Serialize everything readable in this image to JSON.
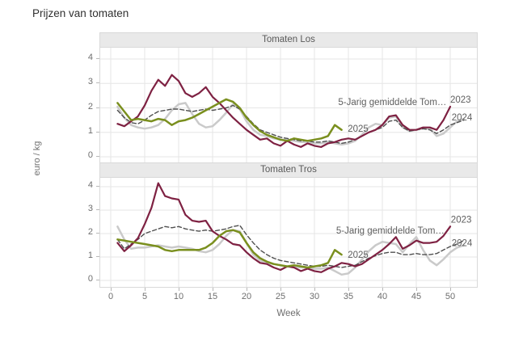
{
  "title": "Prijzen van tomaten",
  "colors": {
    "series_2023": "#7E2142",
    "series_2024": "#CACACA",
    "series_2025": "#7A8F1E",
    "series_avg": "#4F4F4F",
    "grid": "#E6E6E6",
    "panel_border": "#D9D9D9",
    "strip_bg": "#E9E9E9",
    "label_text": "#5E5E5E",
    "tick_text": "#6E6E6E"
  },
  "chart_data": {
    "type": "line",
    "title": "Prijzen van tomaten",
    "xlabel": "Week",
    "ylabel": "euro / kg",
    "x_ticks": [
      0,
      5,
      10,
      15,
      20,
      25,
      30,
      35,
      40,
      45,
      50
    ],
    "y_ticks": [
      0,
      1,
      2,
      3,
      4
    ],
    "xlim": [
      -1.5,
      54
    ],
    "ylim": [
      -0.25,
      4.45
    ],
    "grid": true,
    "legend_position": "direct-labels-on-lines",
    "panels": [
      {
        "title": "Tomaten Los",
        "series": [
          {
            "name": "2024",
            "color_key": "series_2024",
            "style": "solid",
            "width": 2.5,
            "start_week": 1,
            "values": [
              2.05,
              1.6,
              1.3,
              1.2,
              1.15,
              1.2,
              1.3,
              1.55,
              1.9,
              2.15,
              2.2,
              1.75,
              1.35,
              1.2,
              1.25,
              1.5,
              1.8,
              2.15,
              1.95,
              1.45,
              1.1,
              0.9,
              0.85,
              0.75,
              0.7,
              0.7,
              0.65,
              0.6,
              0.6,
              0.55,
              0.55,
              0.6,
              0.55,
              0.5,
              0.55,
              0.65,
              0.9,
              1.2,
              1.35,
              1.3,
              1.6,
              1.65,
              1.2,
              1.05,
              1.1,
              1.15,
              1.15,
              0.85,
              0.95,
              1.2,
              1.45,
              1.55
            ]
          },
          {
            "name": "5-Jarig gemiddelde",
            "color_key": "series_avg",
            "style": "dashed",
            "width": 1.4,
            "start_week": 1,
            "values": [
              1.9,
              1.6,
              1.4,
              1.35,
              1.5,
              1.7,
              1.85,
              1.9,
              1.95,
              1.95,
              1.9,
              1.85,
              1.9,
              1.95,
              1.9,
              1.95,
              2.0,
              2.1,
              1.95,
              1.65,
              1.35,
              1.1,
              1.0,
              0.9,
              0.8,
              0.75,
              0.7,
              0.65,
              0.65,
              0.6,
              0.6,
              0.65,
              0.6,
              0.55,
              0.6,
              0.7,
              0.85,
              1.0,
              1.1,
              1.2,
              1.45,
              1.5,
              1.2,
              1.05,
              1.1,
              1.15,
              1.1,
              0.95,
              1.1,
              1.3,
              1.4,
              1.5
            ]
          },
          {
            "name": "2023",
            "color_key": "series_2023",
            "style": "solid",
            "width": 2.2,
            "start_week": 1,
            "values": [
              1.35,
              1.25,
              1.45,
              1.65,
              2.1,
              2.7,
              3.15,
              2.9,
              3.35,
              3.1,
              2.6,
              2.45,
              2.6,
              2.85,
              2.45,
              2.2,
              1.9,
              1.6,
              1.35,
              1.1,
              0.9,
              0.7,
              0.75,
              0.55,
              0.45,
              0.65,
              0.5,
              0.4,
              0.55,
              0.45,
              0.4,
              0.55,
              0.6,
              0.7,
              0.75,
              0.7,
              0.85,
              1.0,
              1.1,
              1.3,
              1.65,
              1.7,
              1.3,
              1.1,
              1.1,
              1.2,
              1.2,
              1.1,
              1.5,
              2.05
            ]
          },
          {
            "name": "2025",
            "color_key": "series_2025",
            "style": "solid",
            "width": 2.5,
            "start_week": 1,
            "values": [
              2.2,
              1.85,
              1.5,
              1.55,
              1.5,
              1.45,
              1.55,
              1.5,
              1.3,
              1.45,
              1.5,
              1.6,
              1.75,
              1.9,
              2.05,
              2.2,
              2.35,
              2.25,
              2.0,
              1.6,
              1.3,
              1.05,
              0.9,
              0.8,
              0.7,
              0.65,
              0.75,
              0.7,
              0.65,
              0.7,
              0.75,
              0.85,
              1.3,
              1.1
            ]
          }
        ],
        "labels": [
          {
            "text": "5-Jarig gemiddelde Tom…",
            "week": 33.5,
            "value": 2.25,
            "anchor": "start"
          },
          {
            "text": "2023",
            "week": 50.0,
            "value": 2.35,
            "anchor": "start"
          },
          {
            "text": "2024",
            "week": 50.2,
            "value": 1.62,
            "anchor": "start"
          },
          {
            "text": "2025",
            "week": 34.9,
            "value": 1.16,
            "anchor": "start"
          }
        ]
      },
      {
        "title": "Tomaten Tros",
        "series": [
          {
            "name": "2024",
            "color_key": "series_2024",
            "style": "solid",
            "width": 2.5,
            "start_week": 1,
            "values": [
              2.3,
              1.75,
              1.35,
              1.4,
              1.4,
              1.45,
              1.5,
              1.45,
              1.4,
              1.45,
              1.4,
              1.35,
              1.25,
              1.2,
              1.3,
              1.55,
              1.9,
              2.15,
              2.1,
              1.6,
              1.1,
              0.85,
              0.75,
              0.7,
              0.65,
              0.6,
              0.6,
              0.55,
              0.55,
              0.5,
              0.5,
              0.55,
              0.4,
              0.25,
              0.3,
              0.55,
              0.9,
              1.25,
              1.5,
              1.65,
              1.6,
              1.55,
              1.2,
              1.55,
              1.85,
              1.3,
              0.85,
              0.65,
              0.9,
              1.2,
              1.4,
              1.5
            ]
          },
          {
            "name": "5-Jarig gemiddelde",
            "color_key": "series_avg",
            "style": "dashed",
            "width": 1.4,
            "start_week": 1,
            "values": [
              1.75,
              1.35,
              1.55,
              1.75,
              2.0,
              2.1,
              2.2,
              2.3,
              2.25,
              2.3,
              2.2,
              2.15,
              2.1,
              2.15,
              2.1,
              2.15,
              2.2,
              2.3,
              2.35,
              1.95,
              1.6,
              1.3,
              1.1,
              0.95,
              0.85,
              0.8,
              0.75,
              0.7,
              0.65,
              0.6,
              0.6,
              0.65,
              0.6,
              0.55,
              0.6,
              0.65,
              0.8,
              0.95,
              1.05,
              1.15,
              1.2,
              1.2,
              1.1,
              1.1,
              1.15,
              1.1,
              1.1,
              1.15,
              1.3,
              1.45,
              1.55,
              1.7
            ]
          },
          {
            "name": "2023",
            "color_key": "series_2023",
            "style": "solid",
            "width": 2.2,
            "start_week": 1,
            "values": [
              1.6,
              1.25,
              1.5,
              1.8,
              2.4,
              3.1,
              4.15,
              3.6,
              3.5,
              3.45,
              2.8,
              2.55,
              2.5,
              2.55,
              2.1,
              1.9,
              1.75,
              1.55,
              1.5,
              1.2,
              0.95,
              0.75,
              0.7,
              0.55,
              0.45,
              0.6,
              0.55,
              0.4,
              0.5,
              0.4,
              0.35,
              0.5,
              0.6,
              0.75,
              0.7,
              0.6,
              0.7,
              0.9,
              1.1,
              1.3,
              1.55,
              1.85,
              1.35,
              1.5,
              1.7,
              1.6,
              1.6,
              1.65,
              1.9,
              2.3
            ]
          },
          {
            "name": "2025",
            "color_key": "series_2025",
            "style": "solid",
            "width": 2.5,
            "start_week": 1,
            "values": [
              1.75,
              1.7,
              1.65,
              1.6,
              1.55,
              1.5,
              1.45,
              1.3,
              1.25,
              1.3,
              1.3,
              1.3,
              1.3,
              1.4,
              1.6,
              1.9,
              2.1,
              2.15,
              2.05,
              1.6,
              1.2,
              0.95,
              0.8,
              0.7,
              0.65,
              0.6,
              0.65,
              0.6,
              0.55,
              0.6,
              0.65,
              0.75,
              1.3,
              1.1
            ]
          }
        ],
        "labels": [
          {
            "text": "5-Jarig gemiddelde Tom…",
            "week": 33.2,
            "value": 2.14,
            "anchor": "start"
          },
          {
            "text": "2023",
            "week": 50.1,
            "value": 2.6,
            "anchor": "start"
          },
          {
            "text": "2024",
            "week": 50.2,
            "value": 1.6,
            "anchor": "start"
          },
          {
            "text": "2025",
            "week": 34.9,
            "value": 1.1,
            "anchor": "start"
          }
        ]
      }
    ]
  }
}
